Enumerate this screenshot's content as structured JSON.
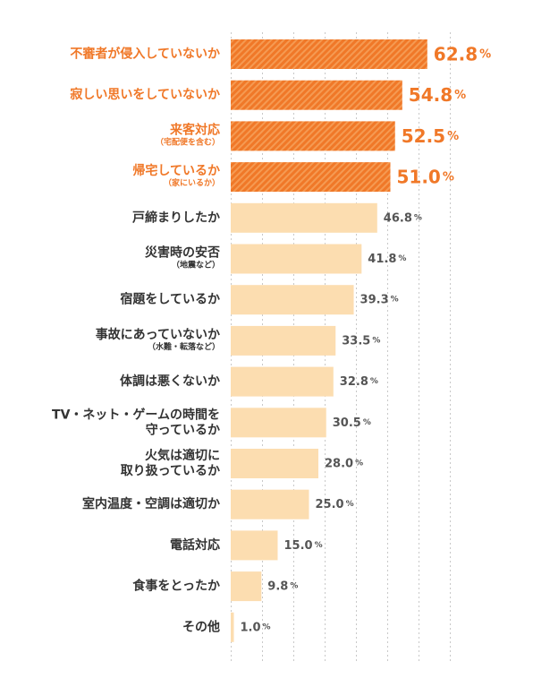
{
  "colors": {
    "highlight": "#F07828",
    "highlight_stripe": "#F59A52",
    "normal": "#FCDDB0",
    "text_dark": "#333333",
    "value_gray": "#555555",
    "grid": "#C8C8C8"
  },
  "chart_data": {
    "type": "bar",
    "orientation": "horizontal",
    "xlim": [
      0,
      70
    ],
    "grid": true,
    "highlighted_count": 4,
    "value_suffix": "%",
    "categories": [
      {
        "label": [
          "不審者が侵入していないか"
        ],
        "sub": ""
      },
      {
        "label": [
          "寂しい思いをしていないか"
        ],
        "sub": ""
      },
      {
        "label": [
          "来客対応"
        ],
        "sub": "（宅配便を含む）"
      },
      {
        "label": [
          "帰宅しているか"
        ],
        "sub": "（家にいるか）"
      },
      {
        "label": [
          "戸締まりしたか"
        ],
        "sub": ""
      },
      {
        "label": [
          "災害時の安否"
        ],
        "sub": "（地震など）"
      },
      {
        "label": [
          "宿題をしているか"
        ],
        "sub": ""
      },
      {
        "label": [
          "事故にあっていないか"
        ],
        "sub": "（水難・転落など）"
      },
      {
        "label": [
          "体調は悪くないか"
        ],
        "sub": ""
      },
      {
        "label": [
          "TV・ネット・ゲームの時間を",
          "守っているか"
        ],
        "sub": ""
      },
      {
        "label": [
          "火気は適切に",
          "取り扱っているか"
        ],
        "sub": ""
      },
      {
        "label": [
          "室内温度・空調は適切か"
        ],
        "sub": ""
      },
      {
        "label": [
          "電話対応"
        ],
        "sub": ""
      },
      {
        "label": [
          "食事をとったか"
        ],
        "sub": ""
      },
      {
        "label": [
          "その他"
        ],
        "sub": ""
      }
    ],
    "values": [
      62.8,
      54.8,
      52.5,
      51.0,
      46.8,
      41.8,
      39.3,
      33.5,
      32.8,
      30.5,
      28.0,
      25.0,
      15.0,
      9.8,
      1.0
    ],
    "value_labels": [
      "62.8",
      "54.8",
      "52.5",
      "51.0",
      "46.8",
      "41.8",
      "39.3",
      "33.5",
      "32.8",
      "30.5",
      "28.0",
      "25.0",
      "15.0",
      "9.8",
      "1.0"
    ]
  }
}
